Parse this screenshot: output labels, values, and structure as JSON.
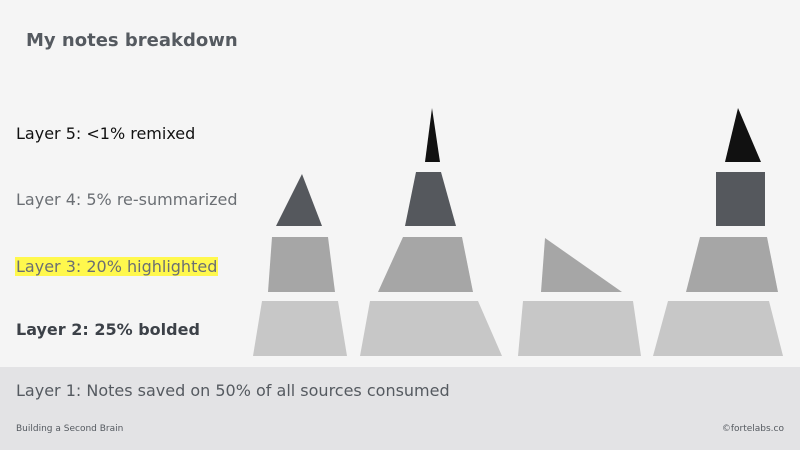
{
  "title": "My notes breakdown",
  "layers": {
    "layer5": "Layer 5: <1% remixed",
    "layer4": "Layer 4: 5% re-summarized",
    "layer3": "Layer 3: 20% highlighted",
    "layer2": "Layer 2: 25% bolded",
    "layer1": "Layer 1: Notes saved on 50% of all sources consumed"
  },
  "colors": {
    "layer5": "#111111",
    "layer4": "#55585d",
    "layer3": "#a6a6a6",
    "layer2": "#c7c7c7",
    "highlight": "#fff84d",
    "footer_band": "#e3e3e5"
  },
  "footer": {
    "left": "Building a Second Brain",
    "right": "©fortelabs.co"
  }
}
